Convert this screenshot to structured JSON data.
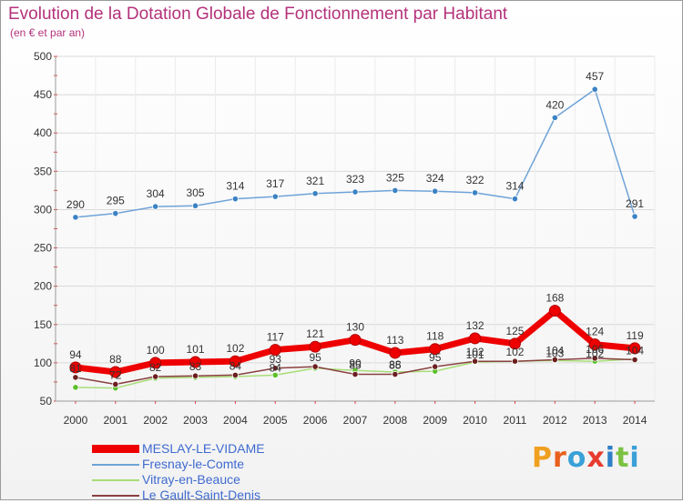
{
  "header": {
    "title": "Evolution de la Dotation Globale de Fonctionnement par Habitant",
    "subtitle": "(en € et par an)"
  },
  "brand": {
    "name": "Proxiti"
  },
  "colors": {
    "title": "#b4327a",
    "legend_text": "#3f6ad0",
    "grid": "#d9d9d9",
    "axis_text": "#333333"
  },
  "chart_data": {
    "type": "line",
    "title": "Evolution de la Dotation Globale de Fonctionnement par Habitant",
    "subtitle": "(en € et par an)",
    "xlabel": "",
    "ylabel": "",
    "ylim": [
      50,
      500
    ],
    "yticks": [
      50,
      100,
      150,
      200,
      250,
      300,
      350,
      400,
      450,
      500
    ],
    "grid": true,
    "legend_position": "bottom-left",
    "categories": [
      "2000",
      "2001",
      "2002",
      "2003",
      "2004",
      "2005",
      "2006",
      "2007",
      "2008",
      "2009",
      "2010",
      "2011",
      "2012",
      "2013",
      "2014"
    ],
    "series": [
      {
        "name": "MESLAY-LE-VIDAME",
        "color": "#ee0000",
        "style": "thick",
        "values": [
          94,
          88,
          100,
          101,
          102,
          117,
          121,
          130,
          113,
          118,
          132,
          125,
          168,
          124,
          119
        ],
        "labels": [
          "94",
          "88",
          "100",
          "101",
          "102",
          "117",
          "121",
          "130",
          "113",
          "118",
          "132",
          "125",
          "168",
          "124",
          "119"
        ]
      },
      {
        "name": "Fresnay-le-Comte",
        "color": "#6fa3d8",
        "point_color": "#3b82c4",
        "style": "thin",
        "values": [
          290,
          295,
          304,
          305,
          314,
          317,
          321,
          323,
          325,
          324,
          322,
          314,
          420,
          457,
          291
        ],
        "labels": [
          "290",
          "295",
          "304",
          "305",
          "314",
          "317",
          "321",
          "323",
          "325",
          "324",
          "322",
          "314",
          "420",
          "457",
          "291"
        ]
      },
      {
        "name": "Vitray-en-Beauce",
        "color": "#a8dd78",
        "point_color": "#5cc02c",
        "style": "thin",
        "values": [
          68,
          67,
          80,
          81,
          82,
          84,
          93,
          90,
          88,
          89,
          101,
          102,
          103,
          102,
          105
        ],
        "labels": [
          "",
          "",
          "",
          "",
          "",
          "84",
          "",
          "90",
          "88",
          "",
          "101",
          "",
          "103",
          "102",
          ""
        ]
      },
      {
        "name": "Le Gault-Saint-Denis",
        "color": "#8a4040",
        "point_color": "#6b1f1f",
        "style": "thin",
        "values": [
          81,
          72,
          82,
          83,
          84,
          93,
          95,
          85,
          85,
          95,
          102,
          102,
          104,
          106,
          104
        ],
        "labels": [
          "81",
          "72",
          "82",
          "83",
          "84",
          "93",
          "95",
          "85",
          "85",
          "95",
          "102",
          "102",
          "104",
          "106",
          "104"
        ]
      }
    ]
  }
}
